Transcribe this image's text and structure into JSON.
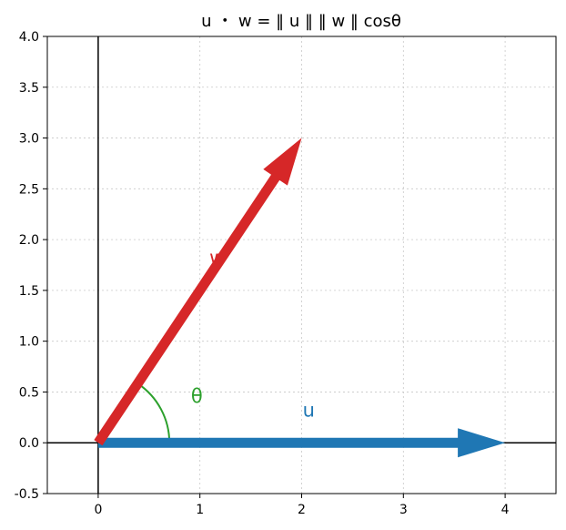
{
  "chart_data": {
    "type": "vector-plot",
    "title": "u ・ w = ‖ u ‖ ‖ w ‖ cosθ",
    "xlim": [
      -0.5,
      4.5
    ],
    "ylim": [
      -0.5,
      4.0
    ],
    "xticks": [
      0,
      1,
      2,
      3,
      4
    ],
    "xtick_labels": [
      "0",
      "1",
      "2",
      "3",
      "4"
    ],
    "yticks": [
      -0.5,
      0.0,
      0.5,
      1.0,
      1.5,
      2.0,
      2.5,
      3.0,
      3.5,
      4.0
    ],
    "ytick_labels": [
      "-0.5",
      "0.0",
      "0.5",
      "1.0",
      "1.5",
      "2.0",
      "2.5",
      "3.0",
      "3.5",
      "4.0"
    ],
    "grid": true,
    "vectors": [
      {
        "name": "u",
        "label": "u",
        "from": [
          0,
          0
        ],
        "to": [
          4,
          0
        ],
        "color": "#1f77b4"
      },
      {
        "name": "w",
        "label": "w",
        "from": [
          0,
          0
        ],
        "to": [
          2,
          3
        ],
        "color": "#d62728"
      }
    ],
    "angle_arc": {
      "label": "θ",
      "radius": 0.7,
      "from_deg": 0,
      "to_deg": 56.3,
      "color": "#2ca02c"
    },
    "annotations": [
      {
        "text": "u",
        "x": 2.07,
        "y": 0.32,
        "color": "#1f77b4"
      },
      {
        "text": "w",
        "x": 1.17,
        "y": 1.82,
        "color": "#d62728"
      },
      {
        "text": "θ",
        "x": 0.97,
        "y": 0.46,
        "color": "#2ca02c"
      }
    ]
  }
}
